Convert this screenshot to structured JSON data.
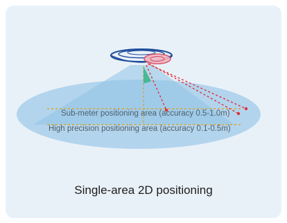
{
  "diagram": {
    "sub_meter_label": "Sub-meter positioning area (accuracy 0.5-1.0m)",
    "high_precision_label": "High precision positioning area (accuracy 0.1-0.5m)",
    "caption": "Single-area 2D positioning"
  },
  "colors": {
    "card_background": "#e9f1f8",
    "coverage_area": "#a9cfeb",
    "beam": "#8ec3e6",
    "device_outline": "#1f4e9a",
    "ranging_line": "#e0303a",
    "baseline": "#d9a531",
    "angle_marker": "#3fb58a"
  }
}
